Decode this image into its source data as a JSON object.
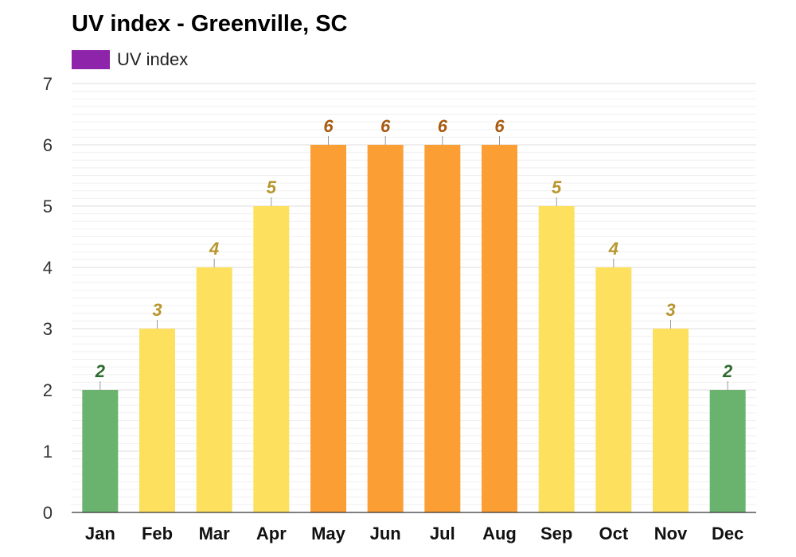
{
  "chart_data": {
    "type": "bar",
    "title": "UV index - Greenville, SC",
    "categories": [
      "Jan",
      "Feb",
      "Mar",
      "Apr",
      "May",
      "Jun",
      "Jul",
      "Aug",
      "Sep",
      "Oct",
      "Nov",
      "Dec"
    ],
    "series": [
      {
        "name": "UV index",
        "values": [
          2,
          3,
          4,
          5,
          6,
          6,
          6,
          6,
          5,
          4,
          3,
          2
        ]
      }
    ],
    "ylim": [
      0,
      7
    ],
    "yticks": [
      "0",
      "1",
      "2",
      "3",
      "4",
      "5",
      "6",
      "7"
    ],
    "xlabel": "",
    "ylabel": "",
    "grid": true,
    "legend_position": "top-left",
    "legend_color": "#8e24aa",
    "colors": {
      "low": "#6ab36f",
      "moderate": "#fde05e",
      "high": "#fb9e34"
    },
    "label_colors": {
      "low": "#2e6b2e",
      "moderate": "#b8962e",
      "high": "#a85a10"
    }
  }
}
